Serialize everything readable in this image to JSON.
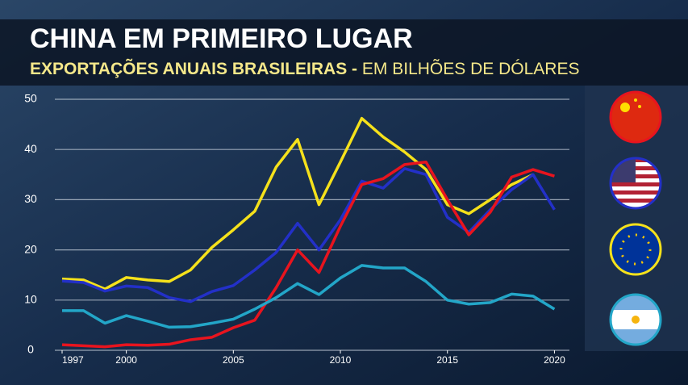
{
  "chart_data": {
    "type": "line",
    "title": "CHINA EM PRIMEIRO LUGAR",
    "subtitle": "EXPORTAÇÕES ANUAIS BRASILEIRAS -",
    "subtitle_unit": "EM BILHÕES DE DÓLARES",
    "x": [
      1997,
      1998,
      1999,
      2000,
      2001,
      2002,
      2003,
      2004,
      2005,
      2006,
      2007,
      2008,
      2009,
      2010,
      2011,
      2012,
      2013,
      2014,
      2015,
      2016,
      2017,
      2018,
      2019,
      2020
    ],
    "xlim": [
      1997,
      2020.7
    ],
    "xticks": [
      1997,
      2000,
      2005,
      2010,
      2015,
      2020
    ],
    "ylim": [
      0,
      50
    ],
    "yticks": [
      0,
      10,
      20,
      30,
      40,
      50
    ],
    "grid": true,
    "series": [
      {
        "color": "#f5e11b",
        "values": [
          14.2,
          14.0,
          12.2,
          14.5,
          14.0,
          13.7,
          16.0,
          20.5,
          24.0,
          27.7,
          36.5,
          42.0,
          29.0,
          37.5,
          46.2,
          42.5,
          39.5,
          36.0,
          29.0,
          27.2,
          30.0,
          33.0,
          35.0,
          null
        ]
      },
      {
        "color": "#2330c8",
        "values": [
          13.8,
          13.5,
          11.8,
          12.8,
          12.5,
          10.5,
          9.7,
          11.7,
          12.9,
          16.0,
          19.5,
          25.3,
          20.0,
          26.0,
          33.7,
          32.3,
          36.2,
          35.0,
          26.5,
          23.5,
          28.0,
          32.0,
          35.0,
          28.0
        ]
      },
      {
        "color": "#e8141e",
        "values": [
          1.1,
          0.9,
          0.7,
          1.1,
          1.0,
          1.2,
          2.1,
          2.6,
          4.5,
          6.0,
          12.5,
          20.0,
          15.5,
          24.7,
          33.0,
          34.2,
          37.0,
          37.5,
          30.0,
          23.0,
          27.5,
          34.5,
          36.0,
          34.7
        ]
      },
      {
        "color": "#23a6c8",
        "values": [
          7.9,
          7.9,
          5.4,
          6.9,
          5.8,
          4.6,
          4.7,
          5.4,
          6.2,
          8.2,
          10.5,
          13.3,
          11.1,
          14.4,
          16.9,
          16.4,
          16.4,
          13.7,
          10.0,
          9.2,
          9.5,
          11.2,
          10.8,
          8.2
        ]
      }
    ]
  }
}
